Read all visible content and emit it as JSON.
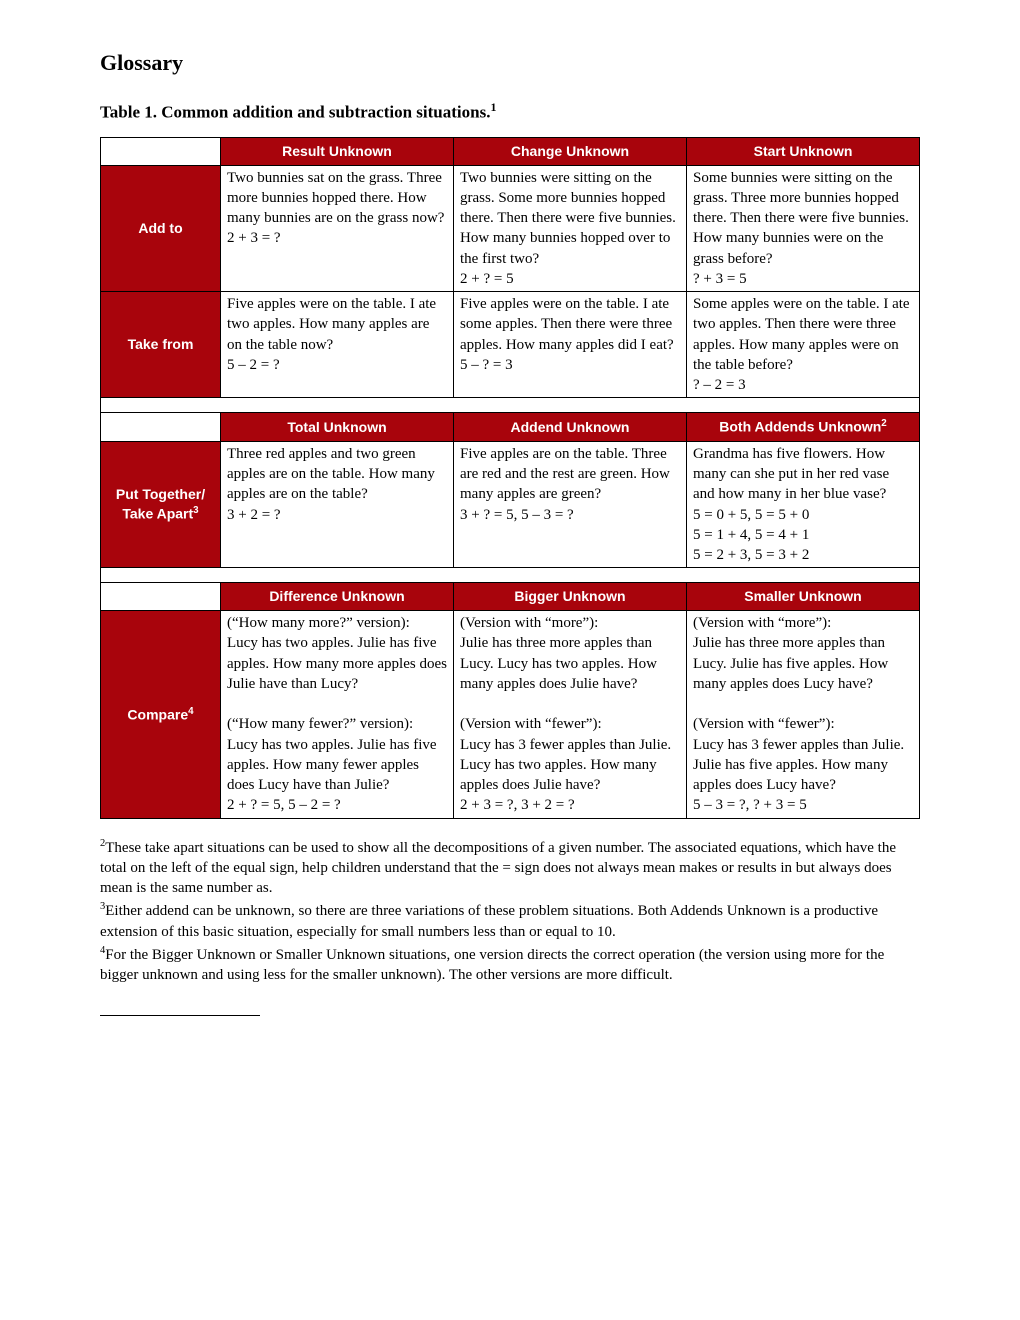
{
  "heading": "Glossary",
  "tableTitle": "Table 1. Common addition and subtraction situations.",
  "tableTitleSup": "1",
  "section1": {
    "headers": [
      "Result Unknown",
      "Change Unknown",
      "Start Unknown"
    ],
    "rows": [
      {
        "label": "Add to",
        "cells": [
          "Two bunnies sat on the grass. Three more bunnies hopped there. How many bunnies are on the grass now?\n2 + 3 = ?",
          "Two bunnies were sitting on the grass. Some more bunnies hopped there. Then there were five bunnies. How many bunnies hopped over to the first two?\n2 + ? = 5",
          "Some bunnies were sitting on the grass. Three more bunnies hopped there. Then there were five bunnies. How many bunnies were on the grass before?\n? + 3 = 5"
        ]
      },
      {
        "label": "Take from",
        "cells": [
          "Five apples were on the table. I ate two apples. How many apples are on the table now?\n5 – 2 = ?",
          "Five apples were on the table. I ate some apples. Then there were three apples. How many apples did I eat?\n5 – ? = 3",
          "Some apples were on the table. I ate two apples. Then there were three apples. How many apples were on the table before?\n? – 2 = 3"
        ]
      }
    ]
  },
  "section2": {
    "headers": [
      "Total Unknown",
      "Addend Unknown",
      "Both Addends Unknown"
    ],
    "headerSup": [
      "",
      "",
      "2"
    ],
    "row": {
      "labelLine1": "Put Together/",
      "labelLine2": "Take Apart",
      "labelSup": "3",
      "cells": [
        "Three red apples and two green apples are on the table. How many apples are on the table?\n3 + 2 = ?",
        "Five apples are on the table. Three are red and the rest are green. How many apples are green?\n3 + ? = 5, 5 – 3 = ?",
        "Grandma has five flowers. How many can she put in her red vase and how many in her blue vase?\n5 = 0 + 5, 5 = 5 + 0\n5 = 1 + 4, 5 = 4 + 1\n5 = 2 + 3, 5 = 3 + 2"
      ]
    }
  },
  "section3": {
    "headers": [
      "Difference Unknown",
      "Bigger Unknown",
      "Smaller Unknown"
    ],
    "row": {
      "label": "Compare",
      "labelSup": "4",
      "cells": [
        "(“How many more?” version):\nLucy has two apples. Julie has five apples. How many more apples does Julie have than Lucy?\n\n(“How many fewer?” version):\nLucy has two apples. Julie has five apples. How many fewer apples does Lucy have than Julie?\n2 + ? = 5, 5 – 2 = ?",
        "(Version with “more”):\nJulie has three more apples than Lucy. Lucy has two apples. How many apples does Julie have?\n\n(Version with “fewer”):\nLucy has 3 fewer apples than Julie. Lucy has two apples. How many apples does Julie have?\n2 + 3 = ?, 3 + 2 = ?",
        "(Version with “more”):\nJulie has three more apples than Lucy. Julie has five apples. How many apples does Lucy have?\n\n(Version with “fewer”):\nLucy has 3 fewer apples than Julie. Julie has five apples. How many apples does Lucy have?\n5 – 3 = ?, ? + 3 = 5"
      ]
    }
  },
  "footnotes": [
    {
      "n": "2",
      "text": "These take apart situations can be used to show all the decompositions of a given number. The associated equations, which have the total on the left of the equal sign, help children understand that the = sign does not always mean makes or results in but always does mean is the same number as."
    },
    {
      "n": "3",
      "text": "Either addend can be unknown, so there are three variations of these problem situations. Both Addends Unknown is a productive extension of this basic situation, especially for small numbers less than or equal to 10."
    },
    {
      "n": "4",
      "text": "For the Bigger Unknown or Smaller Unknown situations, one version directs the correct operation (the version using more for the bigger unknown and using less for the smaller unknown). The other versions are more difficult."
    }
  ],
  "colors": {
    "headerBg": "#a8040c",
    "headerText": "#ffffff",
    "border": "#000000"
  }
}
